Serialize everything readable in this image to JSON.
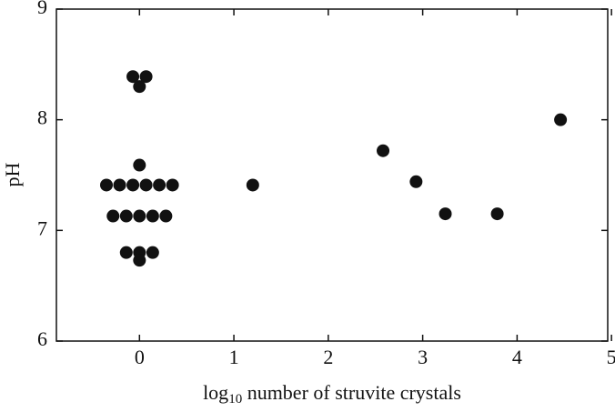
{
  "chart_data": {
    "type": "scatter",
    "x_label": [
      "log",
      "10",
      " number of struvite crystals"
    ],
    "y_label": "pH",
    "color": "#111111",
    "xlim": [
      -0.88,
      4.96
    ],
    "ylim": [
      6,
      9
    ],
    "xticks": [
      0,
      1,
      2,
      3,
      4,
      5
    ],
    "yticks": [
      6,
      7,
      8,
      9
    ],
    "series": [
      {
        "x": [
          -0.07,
          0.07,
          0,
          0,
          -0.35,
          -0.21,
          -0.07,
          0.07,
          0.21,
          0.35,
          -0.28,
          -0.14,
          0,
          0.14,
          0.28,
          -0.14,
          0,
          0.14,
          0,
          1.2,
          2.58,
          2.93,
          3.24,
          3.79,
          4.46
        ],
        "values": [
          8.39,
          8.39,
          8.3,
          7.59,
          7.41,
          7.41,
          7.41,
          7.41,
          7.41,
          7.41,
          7.13,
          7.13,
          7.13,
          7.13,
          7.13,
          6.8,
          6.8,
          6.8,
          6.73,
          7.41,
          7.72,
          7.44,
          7.15,
          7.15,
          8.0
        ]
      }
    ]
  }
}
